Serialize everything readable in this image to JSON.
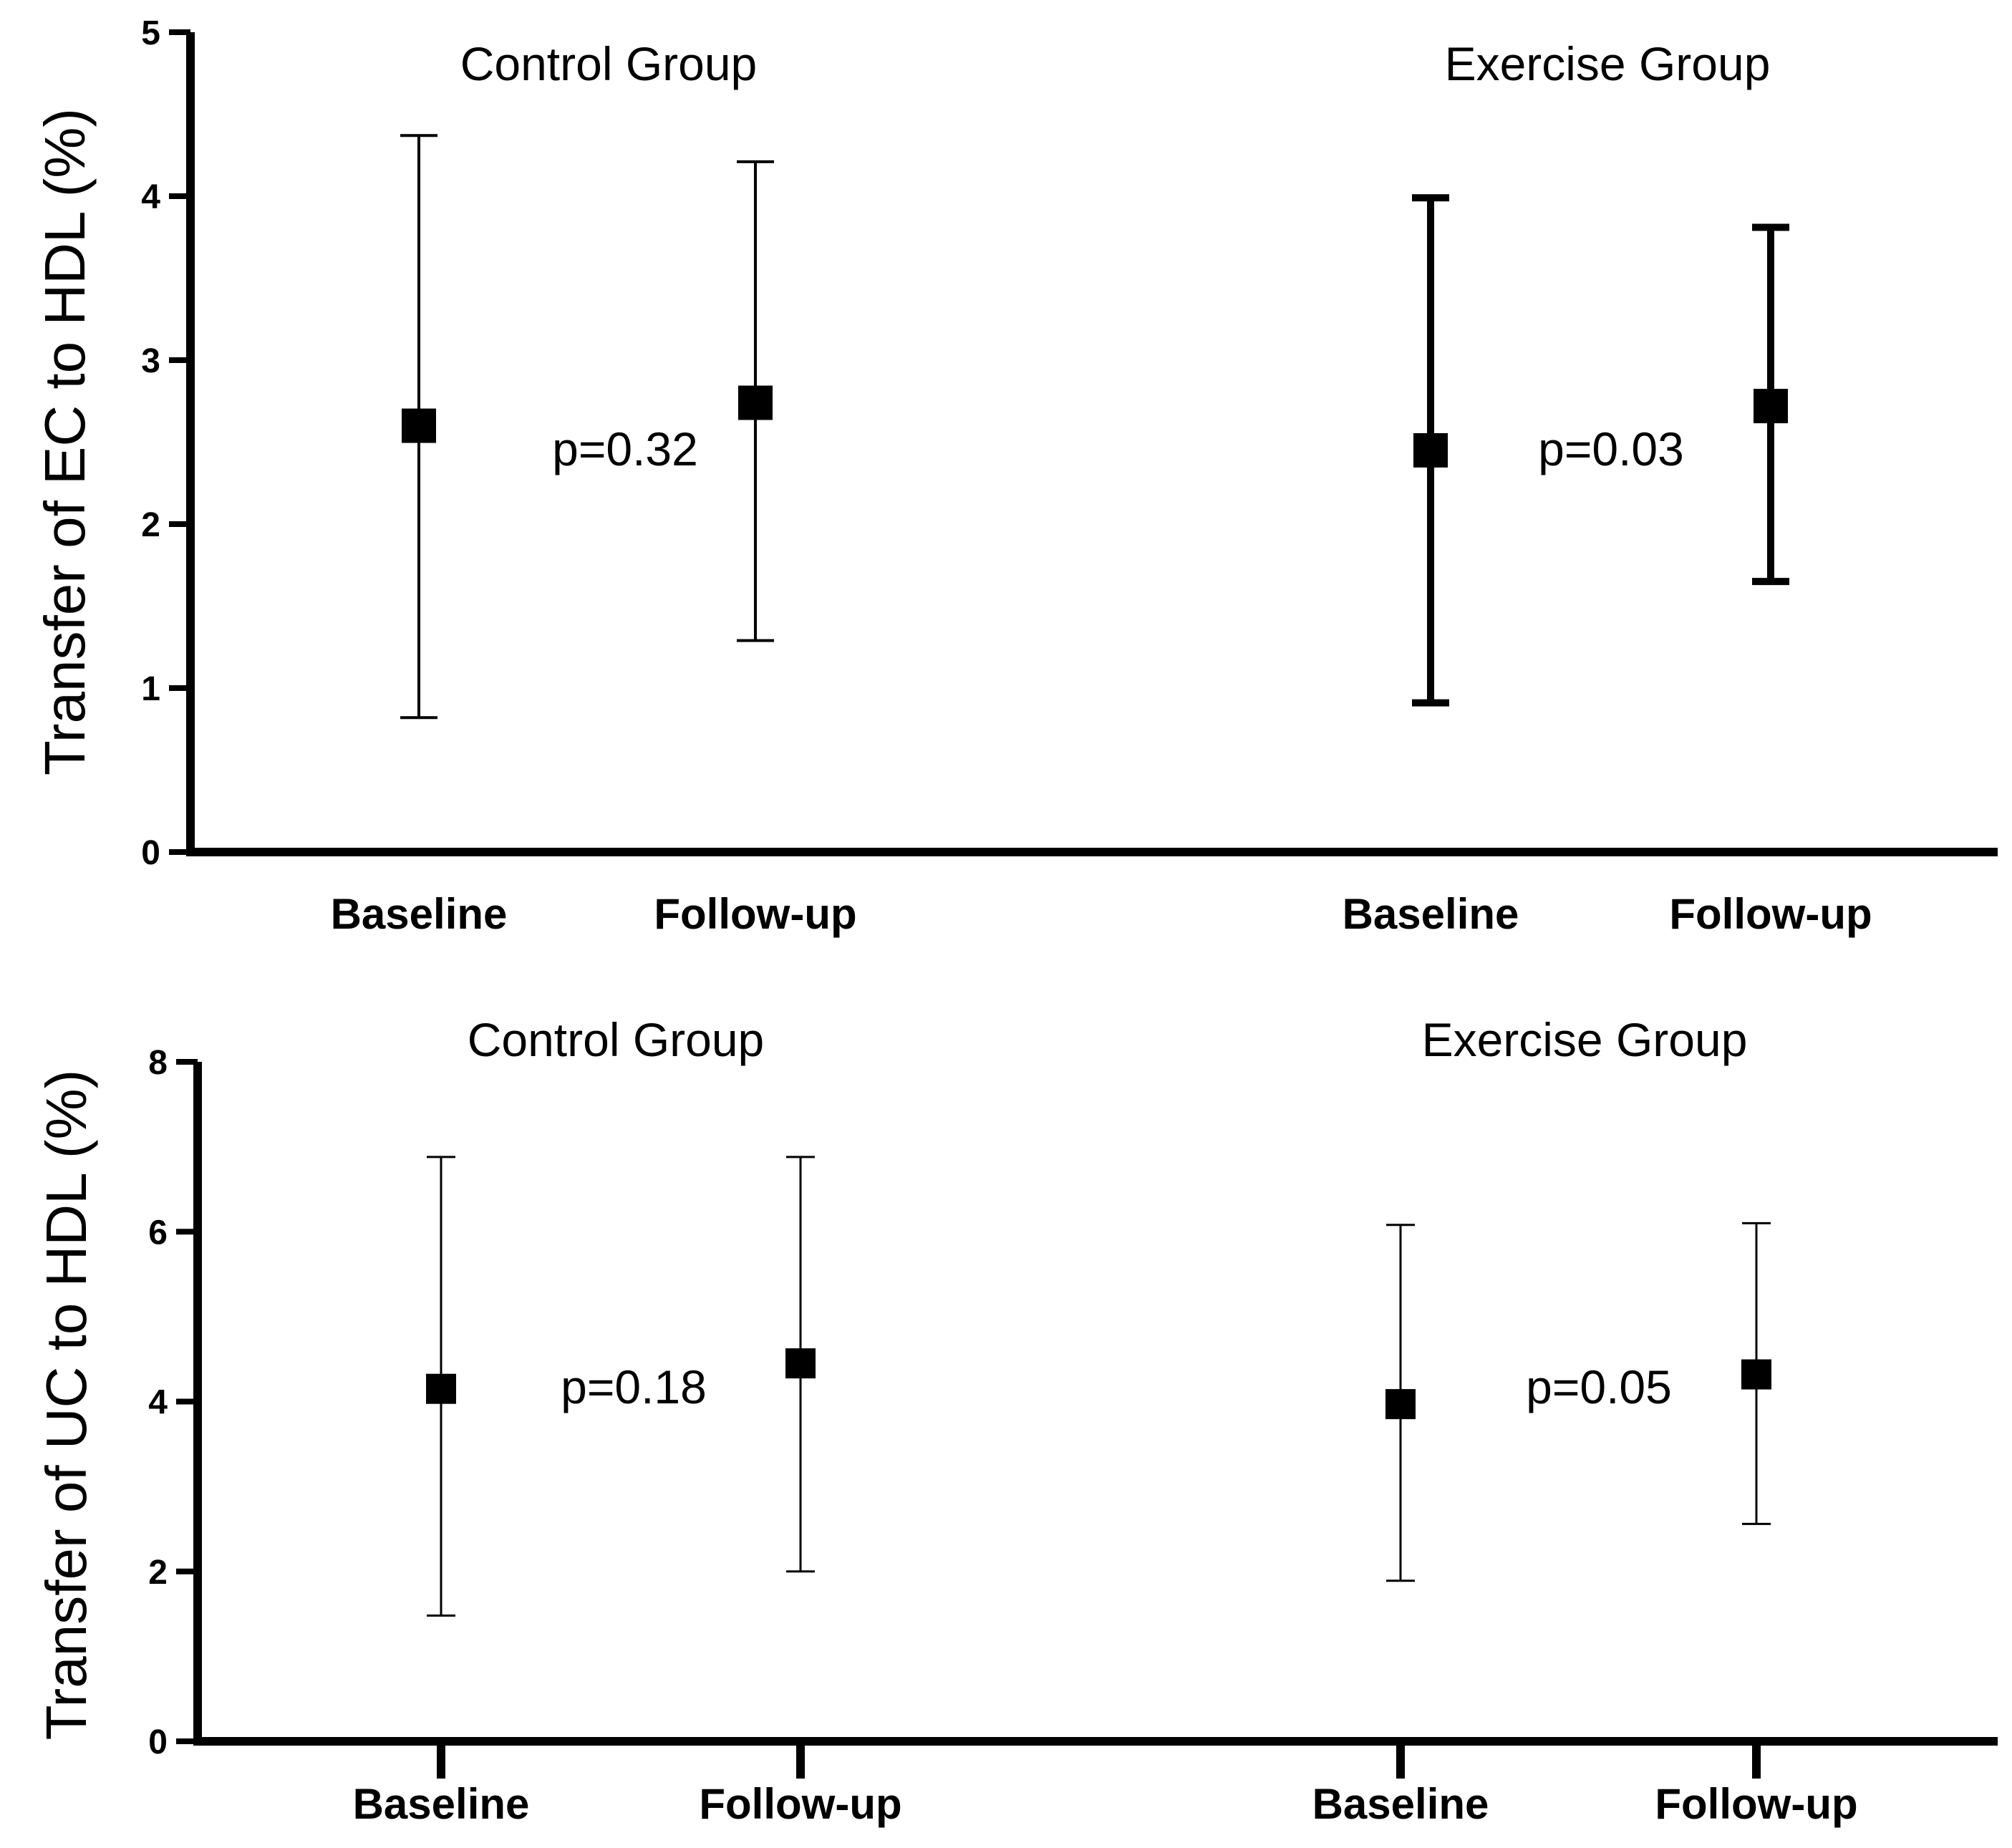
{
  "chart_data": [
    {
      "type": "scatter",
      "ylabel": "Transfer of EC to HDL (%)",
      "ylim": [
        0,
        5
      ],
      "yticks": [
        "0",
        "1",
        "2",
        "3",
        "4",
        "5"
      ],
      "groups": [
        {
          "title": "Control Group",
          "p_value": "p=0.32",
          "categories": [
            "Baseline",
            "Follow-up"
          ],
          "points": [
            {
              "category": "Baseline",
              "mean": 2.6,
              "low": 0.82,
              "high": 4.37
            },
            {
              "category": "Follow-up",
              "mean": 2.74,
              "low": 1.29,
              "high": 4.21
            }
          ]
        },
        {
          "title": "Exercise Group",
          "p_value": "p=0.03",
          "categories": [
            "Baseline",
            "Follow-up"
          ],
          "points": [
            {
              "category": "Baseline",
              "mean": 2.45,
              "low": 0.91,
              "high": 3.99
            },
            {
              "category": "Follow-up",
              "mean": 2.72,
              "low": 1.65,
              "high": 3.81
            }
          ]
        }
      ]
    },
    {
      "type": "scatter",
      "ylabel": "Transfer of UC to HDL (%)",
      "ylim": [
        0,
        8
      ],
      "yticks": [
        "0",
        "2",
        "4",
        "6",
        "8"
      ],
      "groups": [
        {
          "title": "Control Group",
          "p_value": "p=0.18",
          "categories": [
            "Baseline",
            "Follow-up"
          ],
          "points": [
            {
              "category": "Baseline",
              "mean": 4.15,
              "low": 1.48,
              "high": 6.88
            },
            {
              "category": "Follow-up",
              "mean": 4.45,
              "low": 2.0,
              "high": 6.88
            }
          ]
        },
        {
          "title": "Exercise Group",
          "p_value": "p=0.05",
          "categories": [
            "Baseline",
            "Follow-up"
          ],
          "points": [
            {
              "category": "Baseline",
              "mean": 3.97,
              "low": 1.89,
              "high": 6.08
            },
            {
              "category": "Follow-up",
              "mean": 4.32,
              "low": 2.56,
              "high": 6.1
            }
          ]
        }
      ]
    }
  ]
}
